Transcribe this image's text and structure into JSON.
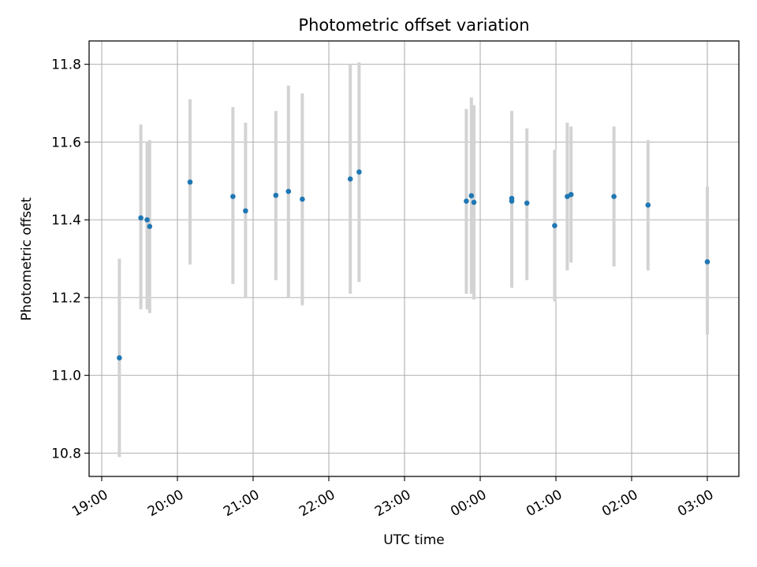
{
  "chart_data": {
    "type": "scatter",
    "title": "Photometric offset variation",
    "xlabel": "UTC time",
    "ylabel": "Photometric offset",
    "xlim": [
      "18:50",
      "27:25"
    ],
    "ylim": [
      10.74,
      11.86
    ],
    "x_ticks": [
      "19:00",
      "20:00",
      "21:00",
      "22:00",
      "23:00",
      "00:00",
      "01:00",
      "02:00",
      "03:00"
    ],
    "y_ticks": [
      "10.8",
      "11.0",
      "11.2",
      "11.4",
      "11.6",
      "11.8"
    ],
    "grid": true,
    "marker_color": "#1f77b4",
    "errorbar_color": "#d3d3d3",
    "points": [
      {
        "t": "19:14",
        "y": 11.045,
        "lo": 10.79,
        "hi": 11.3
      },
      {
        "t": "19:31",
        "y": 11.405,
        "lo": 11.17,
        "hi": 11.645
      },
      {
        "t": "19:36",
        "y": 11.4,
        "lo": 11.17,
        "hi": 11.6
      },
      {
        "t": "19:38",
        "y": 11.383,
        "lo": 11.16,
        "hi": 11.605
      },
      {
        "t": "20:10",
        "y": 11.497,
        "lo": 11.285,
        "hi": 11.71
      },
      {
        "t": "20:44",
        "y": 11.46,
        "lo": 11.235,
        "hi": 11.69
      },
      {
        "t": "20:54",
        "y": 11.423,
        "lo": 11.2,
        "hi": 11.65
      },
      {
        "t": "21:18",
        "y": 11.463,
        "lo": 11.245,
        "hi": 11.68
      },
      {
        "t": "21:28",
        "y": 11.473,
        "lo": 11.2,
        "hi": 11.745
      },
      {
        "t": "21:39",
        "y": 11.453,
        "lo": 11.18,
        "hi": 11.725
      },
      {
        "t": "22:17",
        "y": 11.505,
        "lo": 11.21,
        "hi": 11.8
      },
      {
        "t": "22:24",
        "y": 11.523,
        "lo": 11.24,
        "hi": 11.805
      },
      {
        "t": "23:49",
        "y": 11.448,
        "lo": 11.21,
        "hi": 11.685
      },
      {
        "t": "23:53",
        "y": 11.462,
        "lo": 11.21,
        "hi": 11.715
      },
      {
        "t": "23:55",
        "y": 11.445,
        "lo": 11.195,
        "hi": 11.695
      },
      {
        "t": "24:25",
        "y": 11.448,
        "lo": 11.225,
        "hi": 11.68
      },
      {
        "t": "24:25",
        "y": 11.455,
        "lo": 11.23,
        "hi": 11.68
      },
      {
        "t": "24:37",
        "y": 11.443,
        "lo": 11.245,
        "hi": 11.635
      },
      {
        "t": "24:59",
        "y": 11.385,
        "lo": 11.19,
        "hi": 11.58
      },
      {
        "t": "25:09",
        "y": 11.46,
        "lo": 11.27,
        "hi": 11.65
      },
      {
        "t": "25:12",
        "y": 11.465,
        "lo": 11.29,
        "hi": 11.64
      },
      {
        "t": "25:46",
        "y": 11.46,
        "lo": 11.28,
        "hi": 11.64
      },
      {
        "t": "26:13",
        "y": 11.438,
        "lo": 11.27,
        "hi": 11.605
      },
      {
        "t": "27:00",
        "y": 11.292,
        "lo": 11.105,
        "hi": 11.485
      }
    ]
  }
}
